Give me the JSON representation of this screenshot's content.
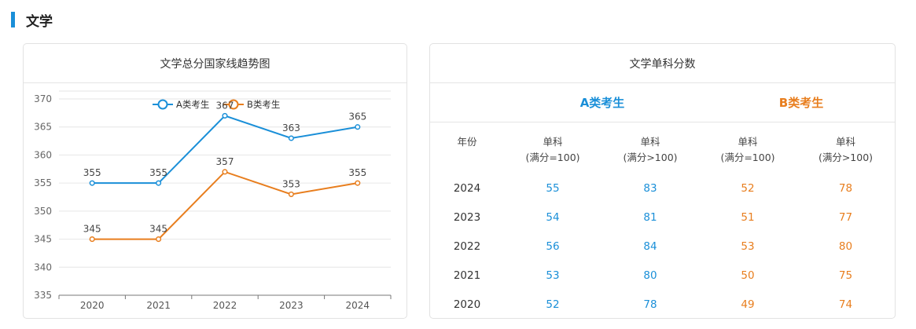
{
  "section": {
    "title": "文学"
  },
  "left_panel": {
    "title": "文学总分国家线趋势图"
  },
  "right_panel": {
    "title": "文学单科分数",
    "category_a": "A类考生",
    "category_b": "B类考生",
    "headers": {
      "year": "年份",
      "a_low": [
        "单科",
        "(满分=100)"
      ],
      "a_high": [
        "单科",
        "(满分>100)"
      ],
      "b_low": [
        "单科",
        "(满分=100)"
      ],
      "b_high": [
        "单科",
        "(满分>100)"
      ]
    },
    "rows": [
      {
        "year": "2024",
        "a_low": "55",
        "a_high": "83",
        "b_low": "52",
        "b_high": "78"
      },
      {
        "year": "2023",
        "a_low": "54",
        "a_high": "81",
        "b_low": "51",
        "b_high": "77"
      },
      {
        "year": "2022",
        "a_low": "56",
        "a_high": "84",
        "b_low": "53",
        "b_high": "80"
      },
      {
        "year": "2021",
        "a_low": "53",
        "a_high": "80",
        "b_low": "50",
        "b_high": "75"
      },
      {
        "year": "2020",
        "a_low": "52",
        "a_high": "78",
        "b_low": "49",
        "b_high": "74"
      }
    ]
  },
  "colors": {
    "accent": "#1a8fd8",
    "series_a": "#1a8fd8",
    "series_b": "#e87e1e"
  },
  "chart_data": {
    "type": "line",
    "title": "文学总分国家线趋势图",
    "x": [
      "2020",
      "2021",
      "2022",
      "2023",
      "2024"
    ],
    "series": [
      {
        "name": "A类考生",
        "values": [
          355,
          355,
          367,
          363,
          365
        ],
        "color": "#1a8fd8"
      },
      {
        "name": "B类考生",
        "values": [
          345,
          345,
          357,
          353,
          355
        ],
        "color": "#e87e1e"
      }
    ],
    "yticks": [
      335,
      340,
      345,
      350,
      355,
      360,
      365,
      370
    ],
    "ylim": [
      335,
      370
    ],
    "xlabel": "",
    "ylabel": "",
    "grid": true,
    "legend": "top-center",
    "data_labels": true
  }
}
